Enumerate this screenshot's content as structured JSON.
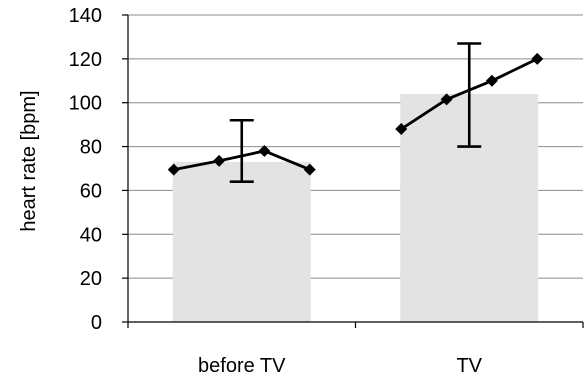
{
  "chart_data": {
    "type": "bar",
    "ylabel": "heart rate  [bpm]",
    "xlabel": "",
    "ylim": [
      0,
      140
    ],
    "yticks": [
      0,
      20,
      40,
      60,
      80,
      100,
      120,
      140
    ],
    "grid": true,
    "categories": [
      "before TV",
      "TV"
    ],
    "bar_color": "#e3e3e3",
    "line_color": "#000000",
    "bars": [
      {
        "category": "before TV",
        "value": 73,
        "error_low": 64,
        "error_high": 92,
        "points": [
          69.5,
          73.5,
          78,
          69.5
        ]
      },
      {
        "category": "TV",
        "value": 104,
        "error_low": 80,
        "error_high": 127,
        "points": [
          88,
          101.5,
          110,
          120
        ]
      }
    ]
  }
}
